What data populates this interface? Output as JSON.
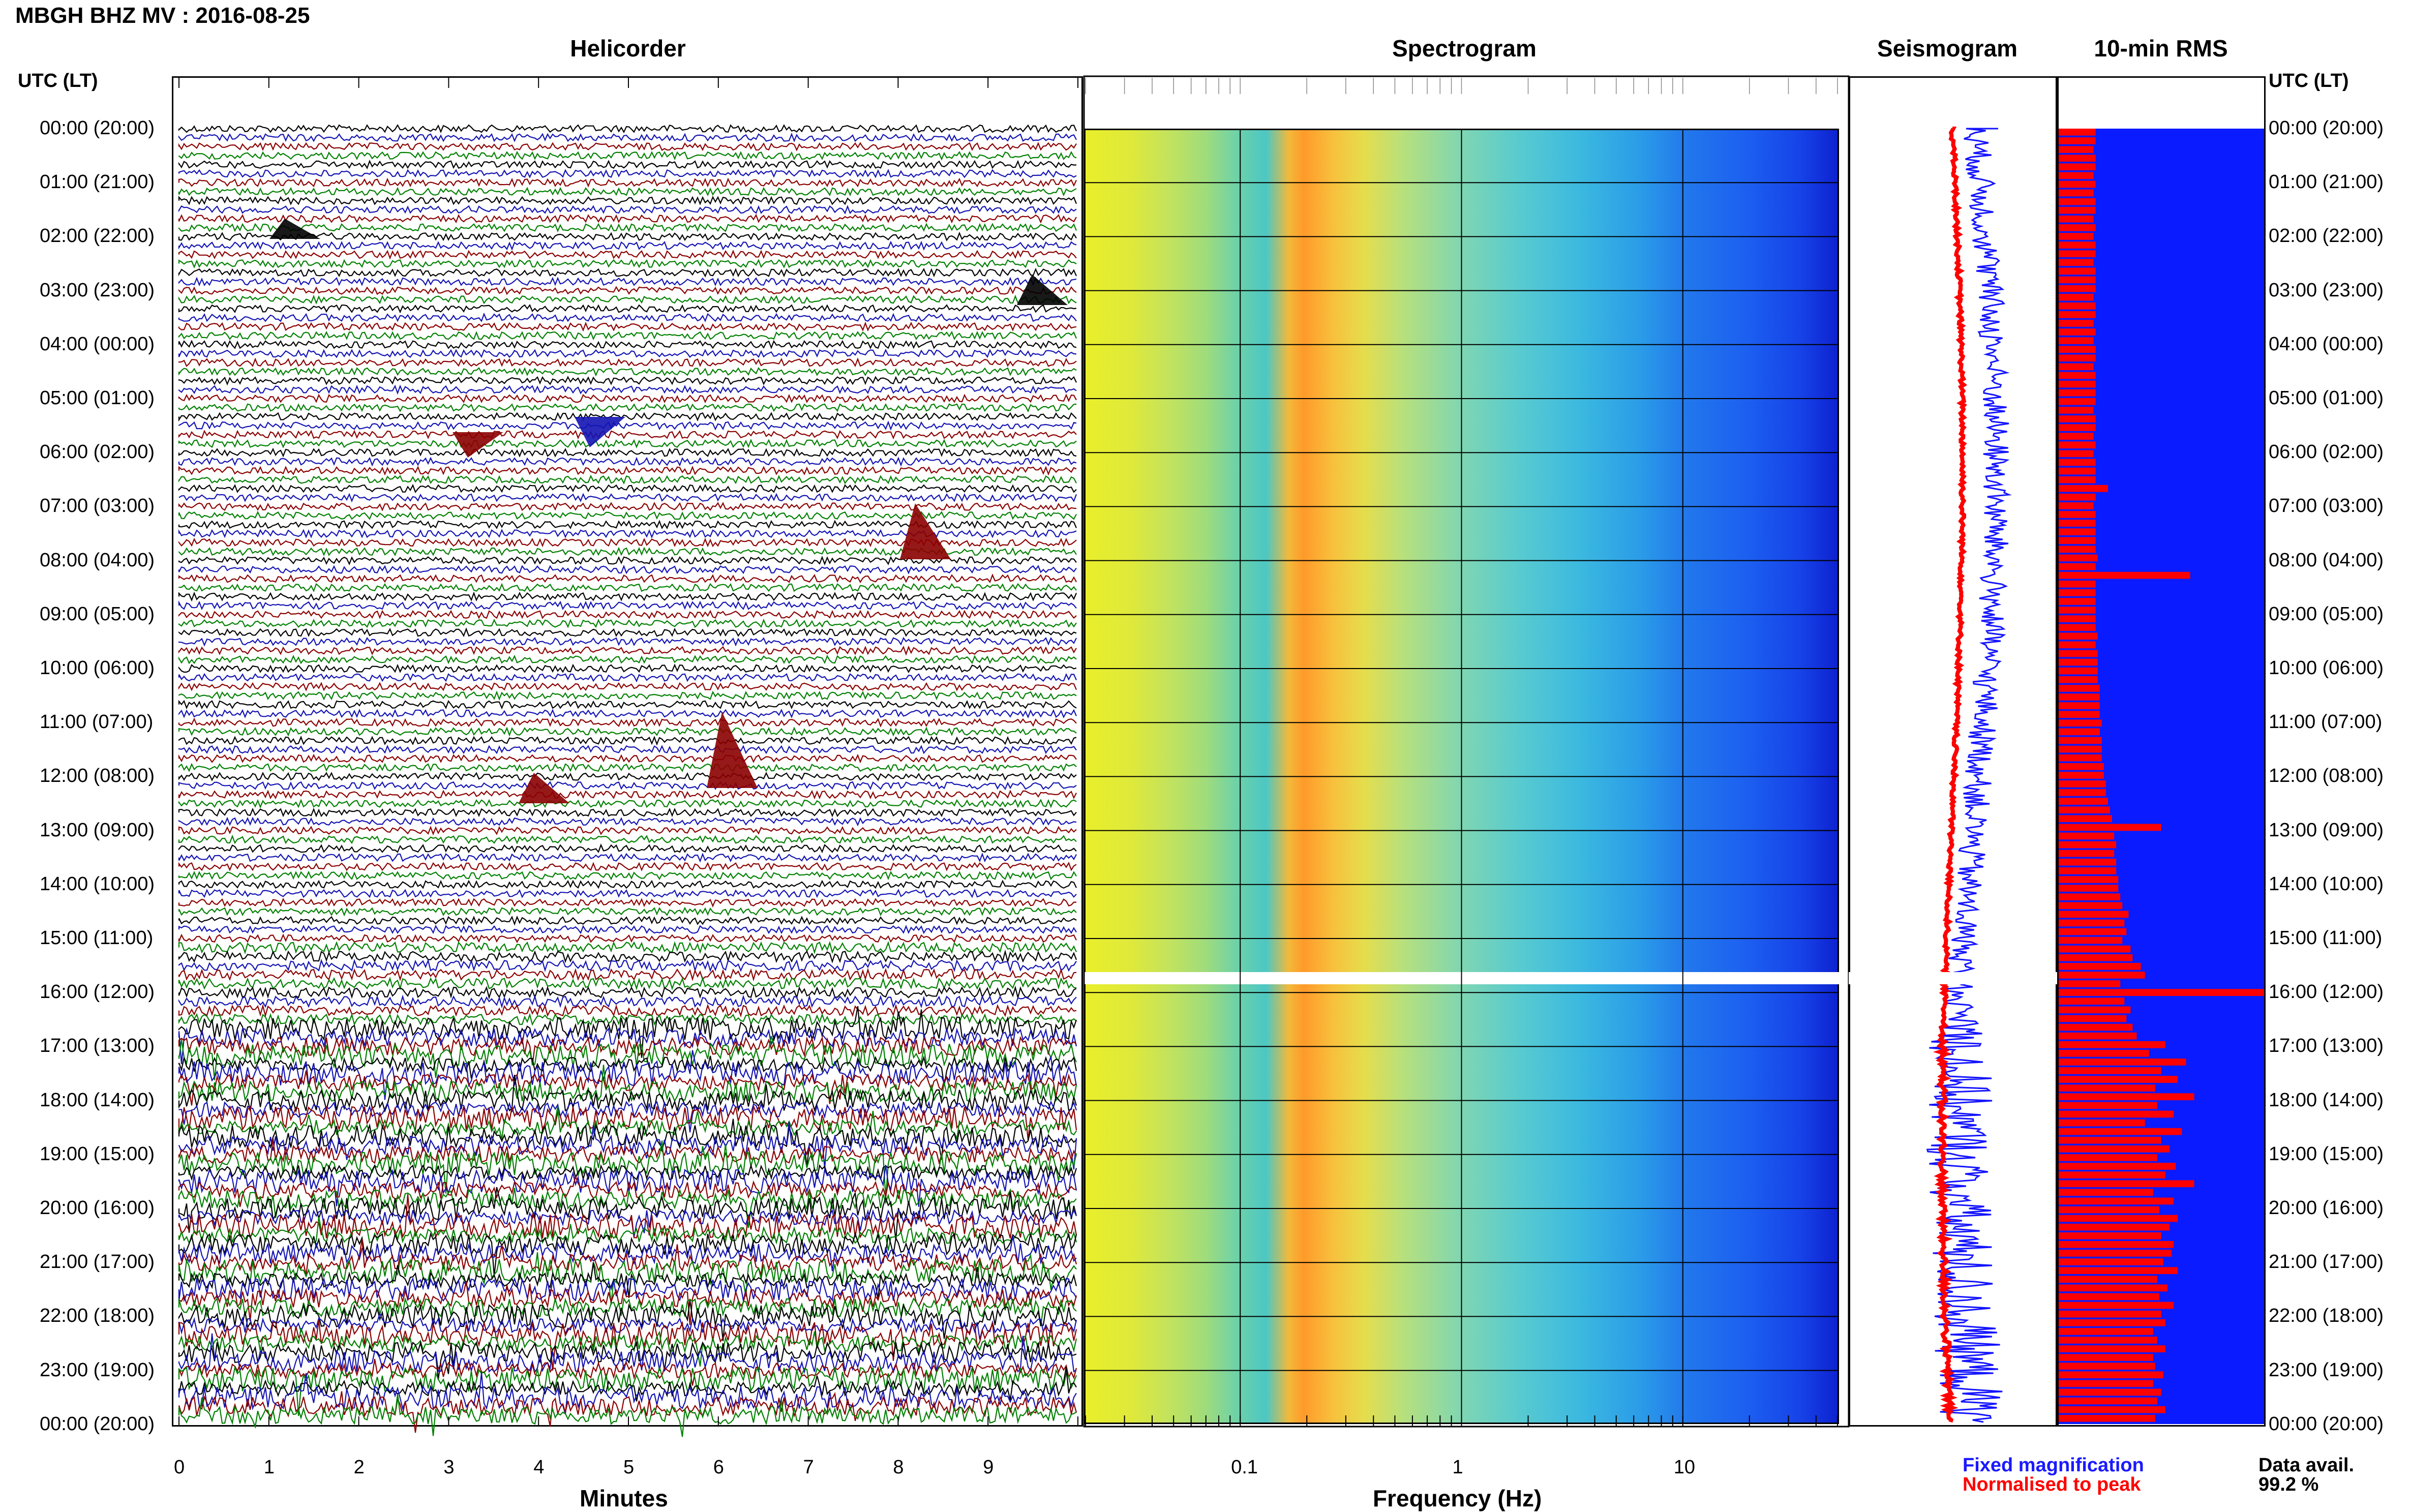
{
  "header": {
    "title": "MBGH BHZ MV : 2016-08-25"
  },
  "panels": {
    "helicorder": "Helicorder",
    "spectrogram": "Spectrogram",
    "seismogram": "Seismogram",
    "rms": "10-min RMS"
  },
  "axis_labels": {
    "utc_left": "UTC (LT)",
    "utc_right": "UTC (LT)",
    "minutes": "Minutes",
    "frequency": "Frequency (Hz)"
  },
  "legend": {
    "fixed": "Fixed magnification",
    "normalised": "Normalised to peak",
    "fixed_color": "#1a1aff",
    "normalised_color": "#ff0000"
  },
  "data_avail": {
    "label": "Data avail.",
    "value": "99.2 %"
  },
  "chart_data": {
    "type": "multi-panel seismic display",
    "time_ticks": [
      "00:00 (20:00)",
      "01:00 (21:00)",
      "02:00 (22:00)",
      "03:00 (23:00)",
      "04:00 (00:00)",
      "05:00 (01:00)",
      "06:00 (02:00)",
      "07:00 (03:00)",
      "08:00 (04:00)",
      "09:00 (05:00)",
      "10:00 (06:00)",
      "11:00 (07:00)",
      "12:00 (08:00)",
      "13:00 (09:00)",
      "14:00 (10:00)",
      "15:00 (11:00)",
      "16:00 (12:00)",
      "17:00 (13:00)",
      "18:00 (14:00)",
      "19:00 (15:00)",
      "20:00 (16:00)",
      "21:00 (17:00)",
      "22:00 (18:00)",
      "23:00 (19:00)",
      "00:00 (20:00)"
    ],
    "helicorder": {
      "xlabel": "Minutes",
      "xlim": [
        0,
        10
      ],
      "xticks": [
        "0",
        "1",
        "2",
        "3",
        "4",
        "5",
        "6",
        "7",
        "8",
        "9"
      ],
      "trace_colors": [
        "#000000",
        "#1414b4",
        "#8b0000",
        "#008000"
      ],
      "rows_per_hour": 6
    },
    "spectrogram": {
      "xlabel": "Frequency (Hz)",
      "xscale": "log",
      "xlim": [
        0.02,
        50
      ],
      "xticks": [
        "0.1",
        "1",
        "10"
      ],
      "peak_band_hz": [
        0.2,
        0.5
      ],
      "data_gap_utc": "16:40"
    },
    "rms": {
      "unit_interval_min": 10,
      "values": [
        0.18,
        0.18,
        0.17,
        0.18,
        0.18,
        0.17,
        0.18,
        0.17,
        0.18,
        0.18,
        0.17,
        0.18,
        0.17,
        0.18,
        0.18,
        0.17,
        0.18,
        0.18,
        0.18,
        0.17,
        0.18,
        0.18,
        0.17,
        0.18,
        0.17,
        0.18,
        0.18,
        0.17,
        0.18,
        0.18,
        0.18,
        0.18,
        0.17,
        0.18,
        0.18,
        0.17,
        0.18,
        0.17,
        0.18,
        0.18,
        0.18,
        0.24,
        0.18,
        0.17,
        0.18,
        0.18,
        0.18,
        0.18,
        0.18,
        0.19,
        0.18,
        0.64,
        0.18,
        0.18,
        0.18,
        0.18,
        0.18,
        0.18,
        0.19,
        0.18,
        0.19,
        0.19,
        0.19,
        0.19,
        0.2,
        0.2,
        0.2,
        0.2,
        0.21,
        0.2,
        0.21,
        0.21,
        0.21,
        0.22,
        0.22,
        0.23,
        0.23,
        0.24,
        0.25,
        0.26,
        0.5,
        0.27,
        0.28,
        0.27,
        0.28,
        0.28,
        0.29,
        0.29,
        0.3,
        0.31,
        0.34,
        0.32,
        0.33,
        0.31,
        0.35,
        0.36,
        0.4,
        0.42,
        0.3,
        1.0,
        0.32,
        0.35,
        0.33,
        0.36,
        0.38,
        0.52,
        0.44,
        0.62,
        0.5,
        0.58,
        0.47,
        0.66,
        0.48,
        0.56,
        0.42,
        0.6,
        0.5,
        0.54,
        0.48,
        0.57,
        0.52,
        0.66,
        0.46,
        0.56,
        0.49,
        0.58,
        0.54,
        0.5,
        0.56,
        0.55,
        0.51,
        0.58,
        0.48,
        0.53,
        0.49,
        0.56,
        0.5,
        0.52,
        0.46,
        0.48,
        0.52,
        0.46,
        0.47,
        0.51,
        0.46,
        0.5,
        0.48,
        0.52,
        0.47
      ]
    }
  }
}
